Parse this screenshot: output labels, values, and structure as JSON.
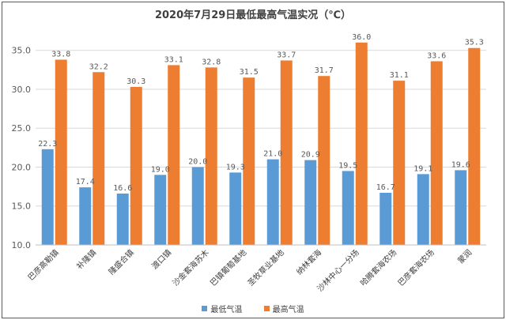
{
  "chart_data": {
    "type": "bar",
    "title": "2020年7月29日最低最高气温实况（℃）",
    "categories": [
      "巴彦高勒镇",
      "补隆镇",
      "隆盛合镇",
      "渡口镇",
      "沙金套海苏木",
      "巴镇葡萄基地",
      "圣牧草业基地",
      "纳林套海",
      "沙林中心一分场",
      "哈腾套海农场",
      "巴彦套海农场",
      "蒙润"
    ],
    "series": [
      {
        "name": "最低气温",
        "color": "#5b9bd5",
        "values": [
          22.3,
          17.4,
          16.6,
          19.0,
          20.0,
          19.3,
          21.0,
          20.9,
          19.5,
          16.7,
          19.1,
          19.6
        ]
      },
      {
        "name": "最高气温",
        "color": "#ed7d31",
        "values": [
          33.8,
          32.2,
          30.3,
          33.1,
          32.8,
          31.5,
          33.7,
          31.7,
          36.0,
          31.1,
          33.6,
          35.3
        ]
      }
    ],
    "ylim": [
      10,
      37
    ],
    "yticks": [
      "10.0",
      "15.0",
      "20.0",
      "25.0",
      "30.0",
      "35.0"
    ],
    "grid": true,
    "legend_position": "bottom"
  }
}
